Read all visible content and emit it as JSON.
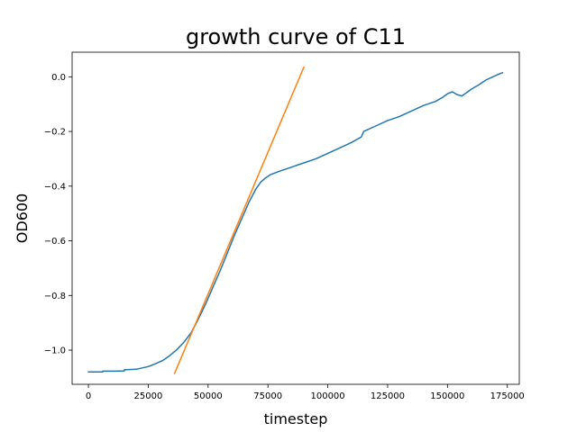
{
  "chart_data": {
    "type": "line",
    "title": "growth curve of C11",
    "xlabel": "timestep",
    "ylabel": "OD600",
    "xlim": [
      -6800,
      180000
    ],
    "ylim": [
      -1.125,
      0.09
    ],
    "grid": false,
    "x_ticks": [
      0,
      25000,
      50000,
      75000,
      100000,
      125000,
      150000,
      175000
    ],
    "x_tick_labels": [
      "0",
      "25000",
      "50000",
      "75000",
      "100000",
      "125000",
      "150000",
      "175000"
    ],
    "y_ticks": [
      0.0,
      -0.2,
      -0.4,
      -0.6,
      -0.8,
      -1.0
    ],
    "y_tick_labels": [
      "0.0",
      "−0.2",
      "−0.4",
      "−0.6",
      "−0.8",
      "−1.0"
    ],
    "series": [
      {
        "color": "#1f77b4",
        "x": [
          0,
          3000,
          6000,
          6000,
          10000,
          15000,
          15000,
          20000,
          25000,
          28000,
          31000,
          34000,
          37000,
          40000,
          43000,
          46000,
          49000,
          52000,
          55000,
          58000,
          61000,
          64000,
          67000,
          70000,
          72000,
          74000,
          76000,
          80000,
          85000,
          90000,
          95000,
          100000,
          105000,
          110000,
          114000,
          115000,
          120000,
          125000,
          130000,
          135000,
          140000,
          145000,
          148000,
          150000,
          152000,
          154000,
          156000,
          158000,
          160000,
          163000,
          166000,
          169000,
          172000,
          173000
        ],
        "y": [
          -1.08,
          -1.08,
          -1.08,
          -1.077,
          -1.077,
          -1.076,
          -1.072,
          -1.07,
          -1.06,
          -1.05,
          -1.038,
          -1.02,
          -0.998,
          -0.97,
          -0.935,
          -0.885,
          -0.83,
          -0.77,
          -0.71,
          -0.645,
          -0.58,
          -0.52,
          -0.46,
          -0.41,
          -0.385,
          -0.37,
          -0.358,
          -0.345,
          -0.33,
          -0.315,
          -0.3,
          -0.28,
          -0.26,
          -0.24,
          -0.22,
          -0.2,
          -0.18,
          -0.16,
          -0.145,
          -0.125,
          -0.105,
          -0.09,
          -0.075,
          -0.062,
          -0.055,
          -0.065,
          -0.07,
          -0.058,
          -0.045,
          -0.03,
          -0.012,
          0.0,
          0.012,
          0.015
        ]
      },
      {
        "color": "#ff7f0e",
        "x": [
          36000,
          90000
        ],
        "y": [
          -1.085,
          0.035
        ]
      }
    ]
  }
}
